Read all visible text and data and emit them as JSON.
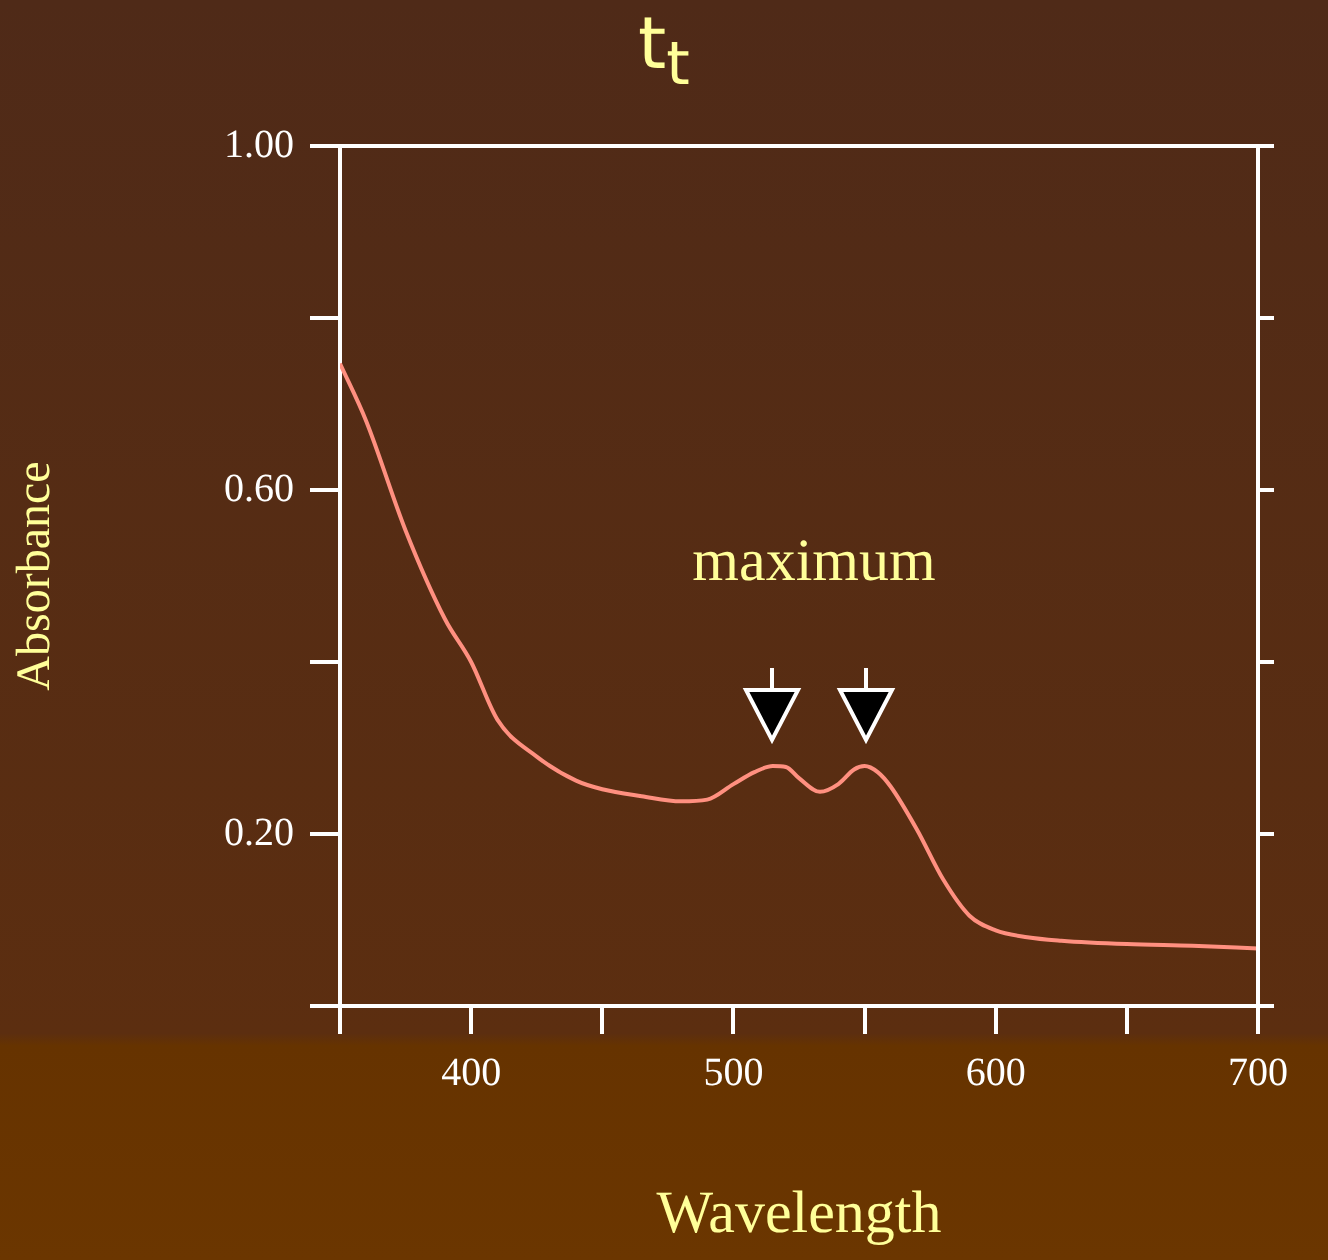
{
  "chart_data": {
    "type": "line",
    "title": "t$_{t}$",
    "xlabel": "Wavelength",
    "ylabel": "Absorbance",
    "annotations": [
      "maximum"
    ],
    "x": [
      350,
      360,
      375,
      390,
      400,
      410,
      425,
      440,
      450,
      465,
      480,
      490,
      500,
      508,
      515,
      520,
      525,
      533,
      540,
      546,
      550,
      555,
      560,
      570,
      580,
      590,
      600,
      612,
      625,
      650,
      675,
      700
    ],
    "series": [
      {
        "color": "#ff9080",
        "values": [
          0.747,
          0.68,
          0.553,
          0.45,
          0.4,
          0.333,
          0.29,
          0.262,
          0.252,
          0.244,
          0.238,
          0.24,
          0.258,
          0.272,
          0.279,
          0.278,
          0.265,
          0.249,
          0.258,
          0.275,
          0.279,
          0.272,
          0.255,
          0.205,
          0.147,
          0.105,
          0.088,
          0.08,
          0.076,
          0.072,
          0.07,
          0.067
        ]
      }
    ],
    "xlim": [
      350,
      700
    ],
    "xticks": [
      {
        "value": 350,
        "label": null
      },
      400,
      {
        "value": 450,
        "label": null
      },
      500,
      {
        "value": 550,
        "label": null
      },
      600,
      {
        "value": 650,
        "label": null
      },
      700
    ],
    "ylim": [
      0,
      1
    ],
    "yticks": [
      {
        "value": 0,
        "label": null
      },
      {
        "value": 0.2,
        "label": "0.20"
      },
      {
        "value": 0.4,
        "label": null
      },
      {
        "value": 0.6,
        "label": "0.60"
      },
      {
        "value": 0.8,
        "label": null
      },
      {
        "value": 1,
        "label": "1.00"
      }
    ],
    "grid": false,
    "legend": false,
    "marker": "none",
    "line_style": "solid"
  }
}
